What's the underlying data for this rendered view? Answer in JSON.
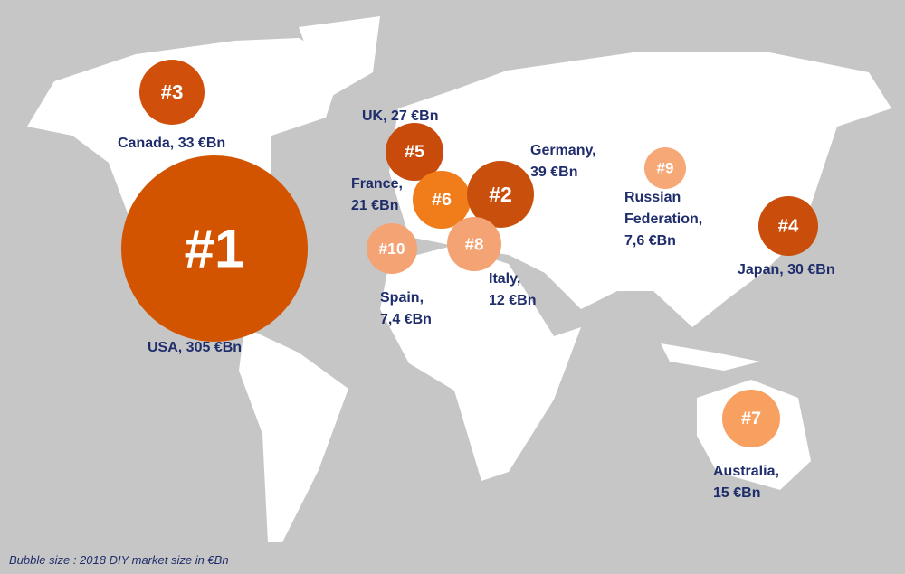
{
  "bubbles": [
    {
      "rank": "#3",
      "label": [
        "Canada, 33 €Bn"
      ]
    },
    {
      "rank": "#1",
      "label": [
        "USA, 305 €Bn"
      ]
    },
    {
      "rank": "#5",
      "label": [
        "UK, 27 €Bn"
      ]
    },
    {
      "rank": "#6",
      "label": [
        "France,",
        "21 €Bn"
      ]
    },
    {
      "rank": "#2",
      "label": [
        "Germany,",
        "39 €Bn"
      ]
    },
    {
      "rank": "#10",
      "label": [
        "Spain,",
        "7,4 €Bn"
      ]
    },
    {
      "rank": "#8",
      "label": [
        "Italy,",
        "12 €Bn"
      ]
    },
    {
      "rank": "#9",
      "label": [
        "Russian",
        "Federation,",
        "7,6 €Bn"
      ]
    },
    {
      "rank": "#4",
      "label": [
        "Japan, 30 €Bn"
      ]
    },
    {
      "rank": "#7",
      "label": [
        "Australia,",
        "15 €Bn"
      ]
    }
  ],
  "footnote": "Bubble size : 2018 DIY market size in €Bn"
}
